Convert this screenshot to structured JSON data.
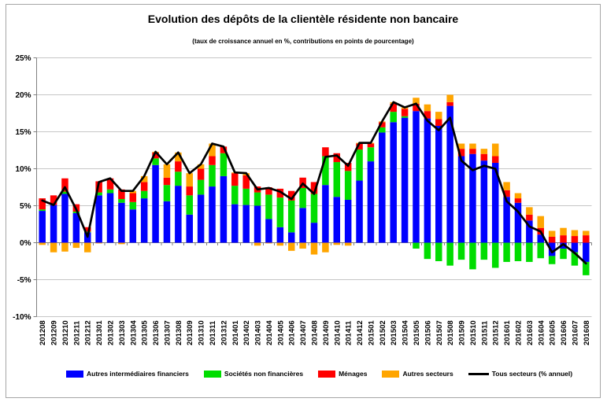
{
  "figure": {
    "title": "Evolution des dépôts de la clientèle résidente non bancaire",
    "subtitle": "(taux de croissance annuel en %, contributions en points de pourcentage)"
  },
  "chart_data": {
    "type": "bar",
    "subtype": "stacked-with-line",
    "title": "Evolution des dépôts de la clientèle résidente non bancaire",
    "subtitle": "(taux de croissance annuel en %, contributions en points de pourcentage)",
    "xlabel": "",
    "ylabel": "",
    "ylim": [
      -10,
      25
    ],
    "ytick_step": 5,
    "ytick_labels": [
      "25%",
      "20%",
      "15%",
      "10%",
      "5%",
      "0%",
      "-5%",
      "-10%"
    ],
    "grid": true,
    "legend_position": "bottom",
    "categories": [
      "201208",
      "201209",
      "201210",
      "201211",
      "201212",
      "201301",
      "201302",
      "201303",
      "201304",
      "201305",
      "201306",
      "201307",
      "201308",
      "201309",
      "201310",
      "201311",
      "201312",
      "201401",
      "201402",
      "201403",
      "201404",
      "201405",
      "201406",
      "201407",
      "201408",
      "201409",
      "201410",
      "201411",
      "201412",
      "201501",
      "201502",
      "201503",
      "201504",
      "201505",
      "201506",
      "201507",
      "201508",
      "201509",
      "201510",
      "201511",
      "201512",
      "201601",
      "201602",
      "201603",
      "201604",
      "201605",
      "201606",
      "201607",
      "201608"
    ],
    "series": [
      {
        "key": "ofi",
        "name": "Autres intermédiaires financiers",
        "role": "bar",
        "color": "#0000FF",
        "values": [
          4.3,
          5.1,
          6.6,
          4.0,
          1.4,
          6.4,
          6.7,
          5.4,
          4.5,
          6.0,
          10.5,
          5.6,
          7.7,
          3.8,
          6.5,
          7.6,
          9.0,
          5.2,
          5.1,
          5.0,
          3.2,
          2.1,
          1.4,
          4.7,
          2.7,
          7.8,
          6.2,
          5.8,
          8.4,
          11.0,
          14.9,
          16.3,
          16.9,
          17.8,
          16.8,
          15.8,
          18.5,
          11.7,
          12.0,
          11.1,
          10.8,
          6.2,
          5.4,
          3.0,
          1.1,
          -1.8,
          -0.8,
          -1.3,
          -2.6
        ]
      },
      {
        "key": "snf",
        "name": "Sociétés non financières",
        "role": "bar",
        "color": "#00DD00",
        "values": [
          0.2,
          0.0,
          0.3,
          0.2,
          0.1,
          0.4,
          0.5,
          0.5,
          1.0,
          1.0,
          0.9,
          2.2,
          1.9,
          2.6,
          2.0,
          2.9,
          3.1,
          2.5,
          2.2,
          1.8,
          3.3,
          4.0,
          4.3,
          2.7,
          3.9,
          3.9,
          4.7,
          3.9,
          4.2,
          1.9,
          0.7,
          1.4,
          0.2,
          -0.8,
          -2.2,
          -2.5,
          -3.1,
          -2.3,
          -3.6,
          -2.3,
          -3.4,
          -2.6,
          -2.5,
          -2.6,
          -2.1,
          -1.1,
          -1.4,
          -1.8,
          -1.8
        ]
      },
      {
        "key": "menages",
        "name": "Ménages",
        "role": "bar",
        "color": "#FF0000",
        "values": [
          1.5,
          1.3,
          1.8,
          1.0,
          0.6,
          1.5,
          1.5,
          1.3,
          1.2,
          1.2,
          0.8,
          1.0,
          1.4,
          1.2,
          1.5,
          1.2,
          0.9,
          1.7,
          1.8,
          0.8,
          1.0,
          1.2,
          1.3,
          1.4,
          1.6,
          1.2,
          1.2,
          1.1,
          0.8,
          0.5,
          0.7,
          1.1,
          1.0,
          1.0,
          1.0,
          0.9,
          0.5,
          1.0,
          0.7,
          0.9,
          0.9,
          0.9,
          0.6,
          0.8,
          0.9,
          0.8,
          1.0,
          0.9,
          1.0
        ]
      },
      {
        "key": "autres",
        "name": "Autres secteurs",
        "role": "bar",
        "color": "#FFA500",
        "values": [
          -0.3,
          -1.3,
          -1.2,
          -0.7,
          -1.3,
          -0.1,
          0.0,
          -0.2,
          0.3,
          0.8,
          0.1,
          1.8,
          1.2,
          1.8,
          0.6,
          1.7,
          0.0,
          0.1,
          0.3,
          -0.4,
          -0.1,
          -0.4,
          -1.1,
          -0.8,
          -1.6,
          -1.3,
          -0.3,
          -0.4,
          0.1,
          0.1,
          0.1,
          0.2,
          0.2,
          0.8,
          0.9,
          1.0,
          1.0,
          0.7,
          0.7,
          0.7,
          1.7,
          1.1,
          0.7,
          1.0,
          1.6,
          0.8,
          1.0,
          0.8,
          0.6
        ]
      },
      {
        "key": "total",
        "name": "Tous secteurs (% annuel)",
        "role": "line",
        "color": "#000000",
        "values": [
          5.7,
          5.1,
          7.5,
          4.5,
          0.8,
          8.2,
          8.7,
          7.0,
          7.0,
          9.0,
          12.3,
          10.6,
          12.2,
          9.4,
          10.6,
          13.4,
          13.0,
          9.5,
          9.4,
          7.2,
          7.4,
          6.9,
          5.9,
          8.0,
          6.6,
          11.6,
          11.8,
          10.4,
          13.5,
          13.5,
          16.4,
          19.0,
          18.3,
          18.8,
          16.5,
          15.2,
          16.9,
          11.1,
          9.8,
          10.4,
          10.0,
          5.6,
          4.2,
          2.2,
          1.5,
          -1.3,
          -0.2,
          -1.4,
          -2.8
        ]
      }
    ],
    "colors": {
      "grid": "#C6C6C6",
      "axis": "#808080",
      "line": "#000000"
    }
  }
}
